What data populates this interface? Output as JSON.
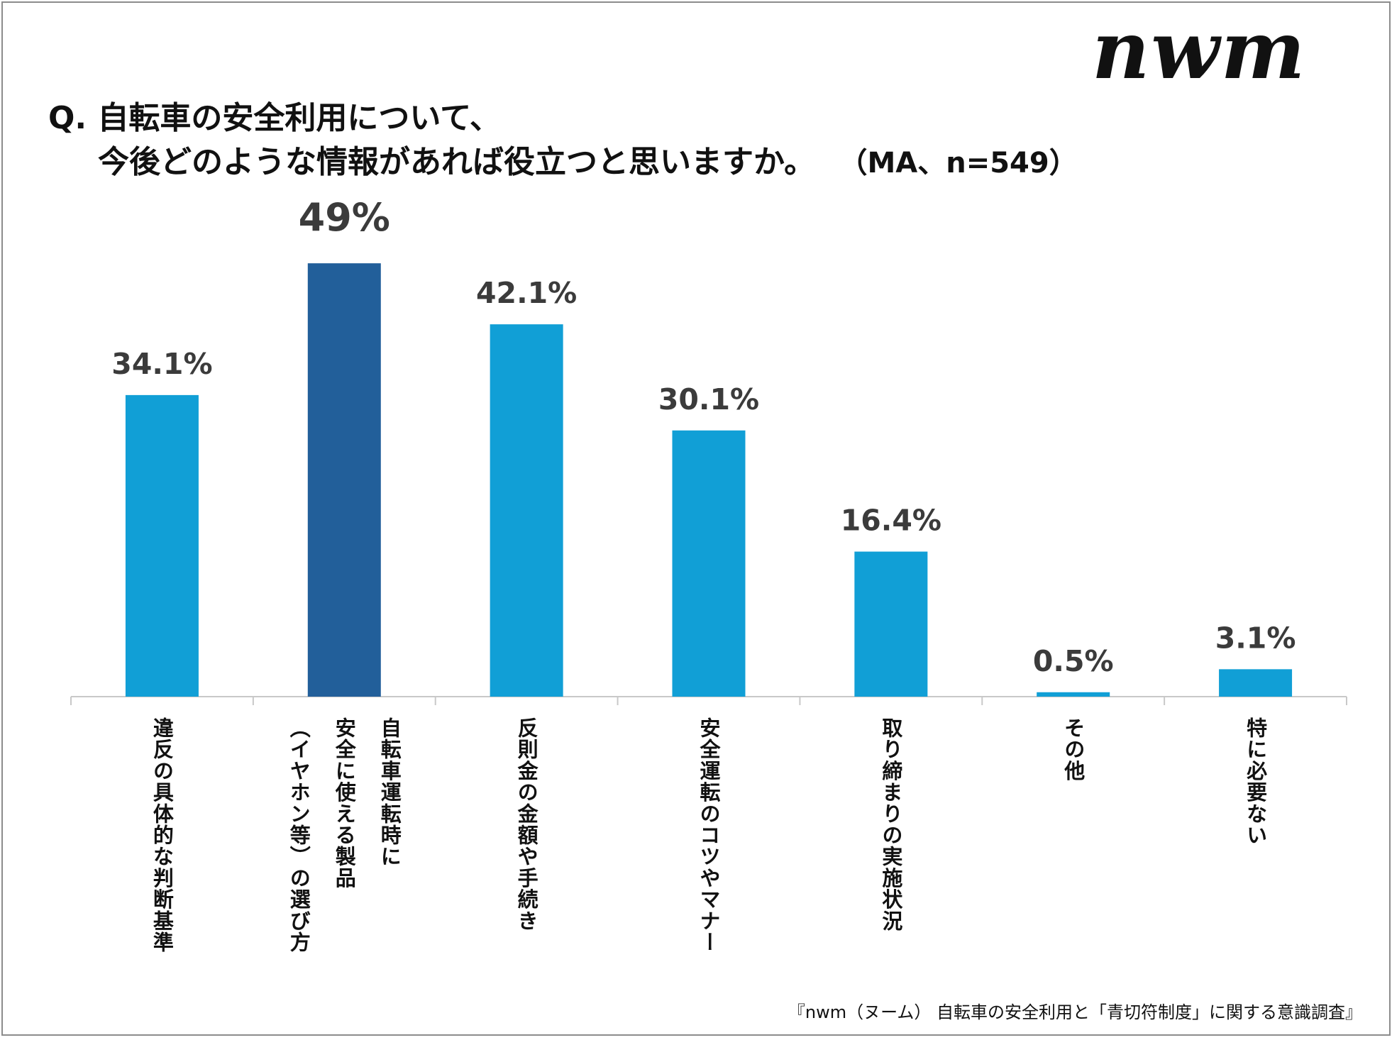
{
  "logo_text": "nwm",
  "title": {
    "line1": "Q. 自転車の安全利用について、",
    "line2": "今後どのような情報があれば役立つと思いますか。",
    "meta": "（MA、n=549）"
  },
  "chart_data": {
    "type": "bar",
    "title": "Q. 自転車の安全利用について、今後どのような情報があれば役立つと思いますか。（MA、n=549）",
    "categories": [
      [
        "違反の具体的な判断基準"
      ],
      [
        "自転車運転時に",
        "安全に使える製品",
        "（イヤホン等）の選び方"
      ],
      [
        "反則金の金額や手続き"
      ],
      [
        "安全運転のコツやマナー"
      ],
      [
        "取り締まりの実施状況"
      ],
      [
        "その他"
      ],
      [
        "特に必要ない"
      ]
    ],
    "values": [
      34.1,
      49,
      42.1,
      30.1,
      16.4,
      0.5,
      3.1
    ],
    "value_labels": [
      "34.1%",
      "49%",
      "42.1%",
      "30.1%",
      "16.4%",
      "0.5%",
      "3.1%"
    ],
    "unit": "%",
    "highlight_index": 1,
    "colors": {
      "bar": "#119FD6",
      "highlight": "#225F9A",
      "axis": "#C8C8C8",
      "label": "#3B3B3B",
      "category": "#111111"
    },
    "ylim": [
      0,
      60
    ],
    "xlabel": "",
    "ylabel": "",
    "grid": false,
    "legend": "none"
  },
  "footer_note": "『nwm（ヌーム） 自転車の安全利用と「青切符制度」に関する意識調査』"
}
